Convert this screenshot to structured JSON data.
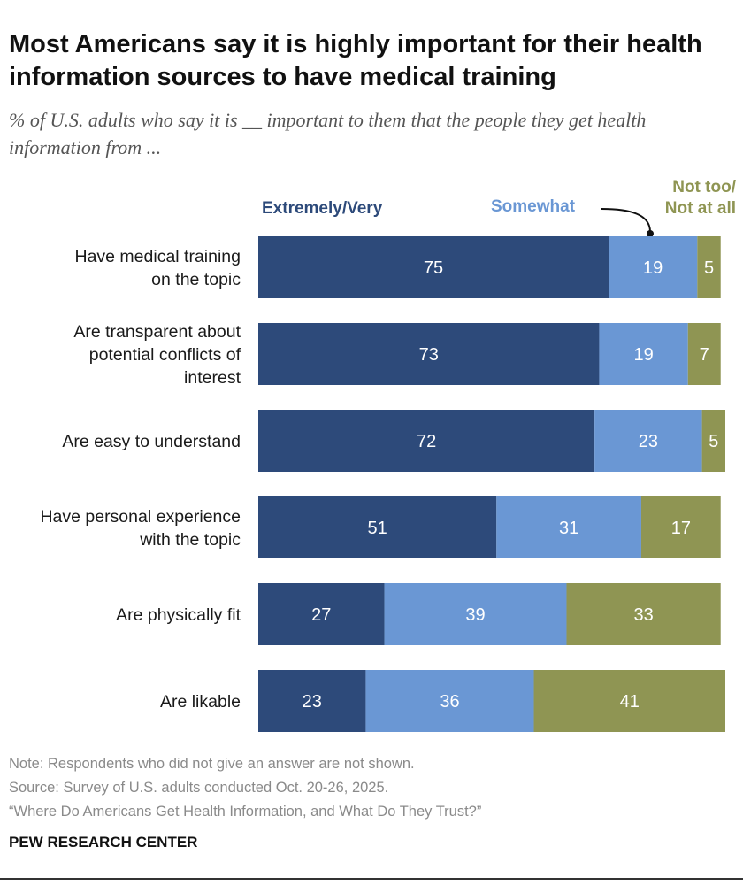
{
  "title": "Most Americans say it is highly important for their health information sources to have medical training",
  "subtitle": "% of U.S. adults who say it is __ important to them that the people they get health information from ...",
  "colors": {
    "extremely_very": "#2d4a7a",
    "somewhat": "#6a97d4",
    "not_too": "#8f9553"
  },
  "chart_data": {
    "type": "bar",
    "orientation": "horizontal",
    "stacked": true,
    "categories": [
      [
        "Have medical training",
        "on the topic"
      ],
      [
        "Are transparent about",
        "potential conflicts of",
        "interest"
      ],
      [
        "Are easy to understand"
      ],
      [
        "Have personal experience",
        "with the topic"
      ],
      [
        "Are physically fit"
      ],
      [
        "Are likable"
      ]
    ],
    "series": [
      {
        "name": "Extremely/Very",
        "values": [
          75,
          73,
          72,
          51,
          27,
          23
        ]
      },
      {
        "name": "Somewhat",
        "values": [
          19,
          19,
          23,
          31,
          39,
          36
        ]
      },
      {
        "name": "Not too/ Not at all",
        "values": [
          5,
          7,
          5,
          17,
          33,
          41
        ]
      }
    ],
    "legend": {
      "extremely": "Extremely/Very",
      "somewhat": "Somewhat",
      "not_too_line1": "Not too/",
      "not_too_line2": "Not at all"
    },
    "legend_placement": "top, above bars",
    "xlim": [
      0,
      100
    ],
    "grid": false
  },
  "footer": {
    "note": "Note: Respondents who did not give an answer are not shown.",
    "source": "Source: Survey of U.S. adults conducted Oct. 20-26, 2025.",
    "report": "“Where Do Americans Get Health Information, and What Do They Trust?”",
    "brand": "PEW RESEARCH CENTER"
  }
}
